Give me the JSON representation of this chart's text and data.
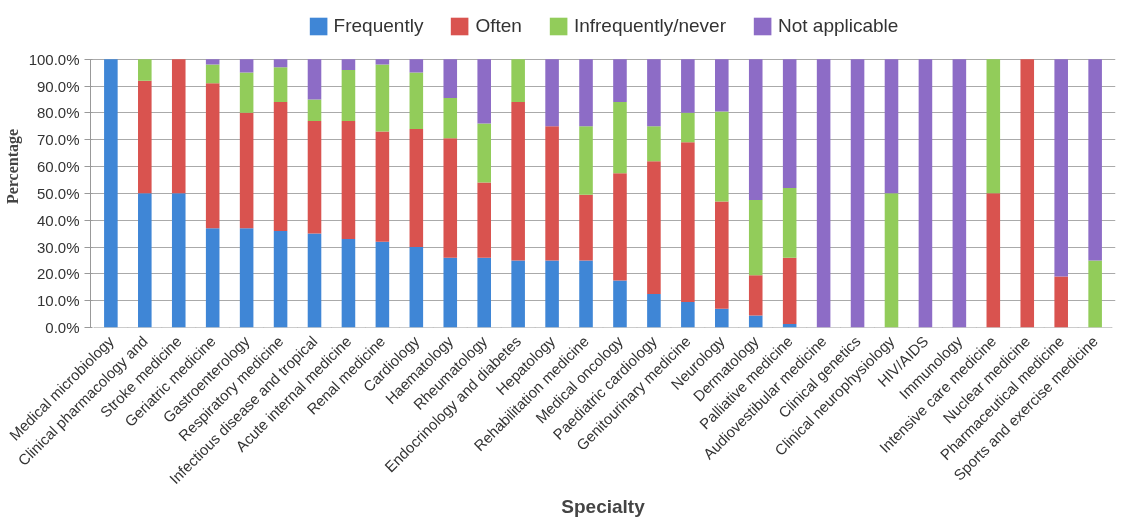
{
  "chart_data": {
    "type": "bar",
    "stacked": true,
    "xlabel": "Specialty",
    "ylabel": "Percentage",
    "categories": [
      "Medical microbiology",
      "Clinical pharmacology and",
      "Stroke medicine",
      "Geriatric medicine",
      "Gastroenterology",
      "Respiratory medicine",
      "Infectious disease and tropical",
      "Acute internal medicine",
      "Renal medicine",
      "Cardiology",
      "Haematology",
      "Rheumatology",
      "Endocrinology and diabetes",
      "Hepatology",
      "Rehabilitation medicine",
      "Medical oncology",
      "Paediatric cardiology",
      "Genitourinary medicine",
      "Neurology",
      "Dermatology",
      "Palliative medicine",
      "Audiovestibular medicine",
      "Clinical genetics",
      "Clinical neurophysiology",
      "HIV/AIDS",
      "Immunology",
      "Intensive care medicine",
      "Nuclear medicine",
      "Pharmaceutical medicine",
      "Sports and exercise medicine"
    ],
    "series": [
      {
        "name": "Frequently",
        "color": "#3f86d6",
        "values": [
          100,
          50,
          50,
          37,
          37,
          36,
          35,
          33,
          32,
          30,
          26,
          26,
          25,
          25,
          25,
          17.5,
          12.5,
          9.5,
          7,
          4.5,
          1.3,
          0,
          0,
          0,
          0,
          0,
          0,
          0,
          0,
          0
        ]
      },
      {
        "name": "Often",
        "color": "#d9534f",
        "values": [
          0,
          42,
          50,
          54,
          43,
          48,
          42,
          44,
          41,
          44,
          44.5,
          28,
          59,
          50,
          24.5,
          40,
          49.5,
          59.5,
          40,
          15,
          24.7,
          0,
          0,
          0,
          0,
          0,
          50,
          100,
          19,
          0
        ]
      },
      {
        "name": "Infrequently/never",
        "color": "#92cc5a",
        "values": [
          0,
          8,
          0,
          7,
          15,
          13,
          8,
          19,
          25,
          21,
          15,
          22,
          16,
          0,
          25.5,
          26.5,
          13,
          11,
          33.5,
          28,
          26,
          0,
          0,
          50,
          0,
          0,
          50,
          0,
          0,
          25
        ]
      },
      {
        "name": "Not applicable",
        "color": "#8d6cc6",
        "values": [
          0,
          0,
          0,
          2,
          5,
          3,
          15,
          4,
          2,
          5,
          14.5,
          24,
          0,
          25,
          25,
          16,
          25,
          20,
          19.5,
          52.5,
          48,
          100,
          100,
          50,
          100,
          100,
          0,
          0,
          81,
          75
        ]
      }
    ],
    "ylim": [
      0,
      100
    ],
    "yticks": [
      {
        "value": 0,
        "label": "0.0%"
      },
      {
        "value": 10,
        "label": "10.0%"
      },
      {
        "value": 20,
        "label": "20.0%"
      },
      {
        "value": 30,
        "label": "30.0%"
      },
      {
        "value": 40,
        "label": "40.0%"
      },
      {
        "value": 50,
        "label": "50.0%"
      },
      {
        "value": 60,
        "label": "60.0%"
      },
      {
        "value": 70,
        "label": "70.0%"
      },
      {
        "value": 80,
        "label": "80.0%"
      },
      {
        "value": 90,
        "label": "90.0%"
      },
      {
        "value": 100,
        "label": "100.0%"
      }
    ],
    "grid": "y",
    "legend": "top"
  }
}
